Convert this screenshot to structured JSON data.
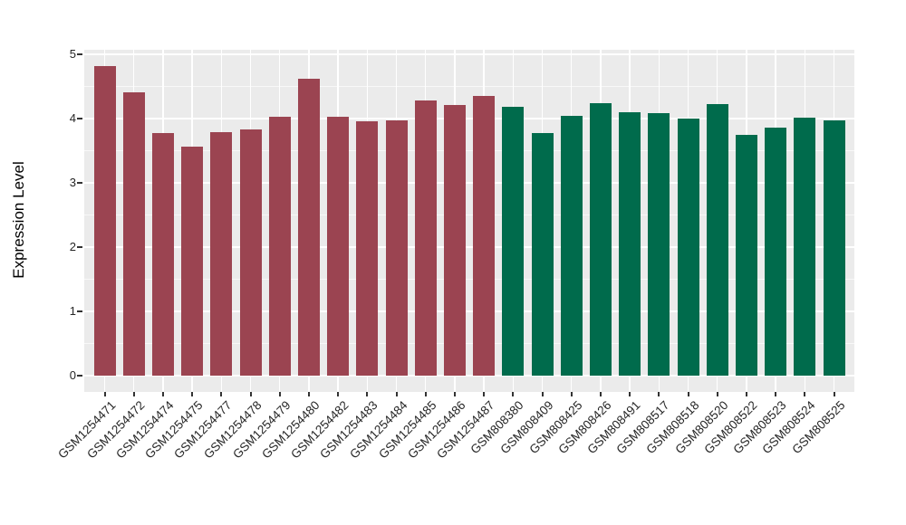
{
  "chart_data": {
    "type": "bar",
    "title": "",
    "ylabel": "Expression Level",
    "xlabel": "",
    "ylim": [
      0,
      5.06
    ],
    "yticks": [
      0,
      1,
      2,
      3,
      4,
      5
    ],
    "ytick_labels": [
      "0",
      "1",
      "2",
      "3",
      "4",
      "5"
    ],
    "grid": "on",
    "legend": "none",
    "categories": [
      "GSM1254471",
      "GSM1254472",
      "GSM1254474",
      "GSM1254475",
      "GSM1254477",
      "GSM1254478",
      "GSM1254479",
      "GSM1254480",
      "GSM1254482",
      "GSM1254483",
      "GSM1254484",
      "GSM1254485",
      "GSM1254486",
      "GSM1254487",
      "GSM808380",
      "GSM808409",
      "GSM808425",
      "GSM808426",
      "GSM808491",
      "GSM808517",
      "GSM808518",
      "GSM808520",
      "GSM808522",
      "GSM808523",
      "GSM808524",
      "GSM808525"
    ],
    "values": [
      4.81,
      4.4,
      3.77,
      3.56,
      3.79,
      3.82,
      4.02,
      4.61,
      4.02,
      3.95,
      3.97,
      4.28,
      4.2,
      4.35,
      4.18,
      3.77,
      4.03,
      4.23,
      4.1,
      4.08,
      3.99,
      4.22,
      3.74,
      3.85,
      4.01,
      3.97
    ],
    "groups": [
      0,
      0,
      0,
      0,
      0,
      0,
      0,
      0,
      0,
      0,
      0,
      0,
      0,
      0,
      1,
      1,
      1,
      1,
      1,
      1,
      1,
      1,
      1,
      1,
      1,
      1
    ],
    "group_names": [
      "red-group",
      "green-group"
    ],
    "group_colors": [
      "#9B4451",
      "#006B4C"
    ],
    "panel_bg": "#EBEBEB",
    "grid_color": "#FFFFFF",
    "axis_text_color": "#262626"
  }
}
